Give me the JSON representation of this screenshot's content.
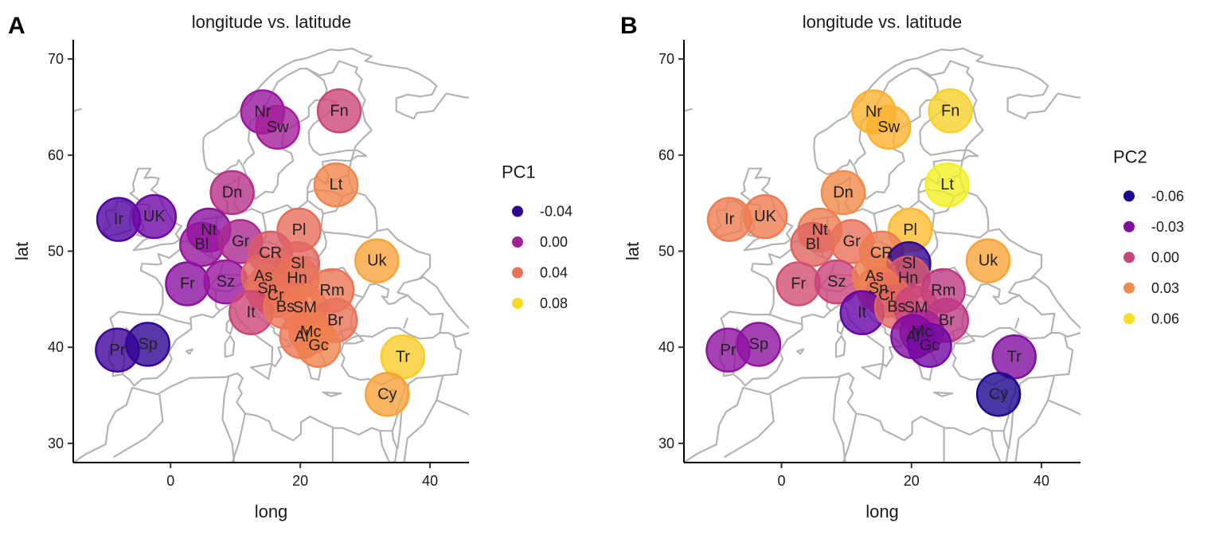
{
  "chart_data": [
    {
      "panel": "A",
      "type": "scatter",
      "title": "longitude vs. latitude",
      "xlabel": "long",
      "ylabel": "lat",
      "xlim": [
        -15,
        46
      ],
      "ylim": [
        28,
        72
      ],
      "xticks": [
        0,
        20,
        40
      ],
      "yticks": [
        30,
        40,
        50,
        60,
        70
      ],
      "color_var": "PC1",
      "legend": {
        "title": "PC1",
        "placement": "right",
        "entries": [
          {
            "label": "-0.04",
            "value": -0.04
          },
          {
            "label": "0.00",
            "value": 0.0
          },
          {
            "label": "0.04",
            "value": 0.04
          },
          {
            "label": "0.08",
            "value": 0.08
          }
        ],
        "range": [
          -0.05,
          0.09
        ]
      },
      "points": [
        {
          "label": "Nr",
          "long": 14.2,
          "lat": 64.5,
          "value": -0.005
        },
        {
          "label": "Sw",
          "long": 16.5,
          "lat": 62.9,
          "value": 0.0
        },
        {
          "label": "Fn",
          "long": 26.0,
          "lat": 64.6,
          "value": 0.02
        },
        {
          "label": "Dn",
          "long": 9.5,
          "lat": 56.1,
          "value": 0.01
        },
        {
          "label": "Lt",
          "long": 25.5,
          "lat": 56.9,
          "value": 0.048
        },
        {
          "label": "Ir",
          "long": -8.0,
          "lat": 53.3,
          "value": -0.03
        },
        {
          "label": "UK",
          "long": -2.5,
          "lat": 53.6,
          "value": -0.02
        },
        {
          "label": "Nt",
          "long": 5.9,
          "lat": 52.2,
          "value": -0.01
        },
        {
          "label": "Bl",
          "long": 4.8,
          "lat": 50.7,
          "value": -0.005
        },
        {
          "label": "Gr",
          "long": 10.8,
          "lat": 51.0,
          "value": 0.005
        },
        {
          "label": "Pl",
          "long": 19.8,
          "lat": 52.2,
          "value": 0.038
        },
        {
          "label": "CR",
          "long": 15.4,
          "lat": 49.8,
          "value": 0.03
        },
        {
          "label": "Sl",
          "long": 19.6,
          "lat": 48.7,
          "value": 0.035
        },
        {
          "label": "Uk",
          "long": 31.8,
          "lat": 49.0,
          "value": 0.06
        },
        {
          "label": "Fr",
          "long": 2.6,
          "lat": 46.6,
          "value": -0.01
        },
        {
          "label": "Sz",
          "long": 8.5,
          "lat": 46.8,
          "value": -0.005
        },
        {
          "label": "As",
          "long": 14.3,
          "lat": 47.4,
          "value": 0.035
        },
        {
          "label": "Hn",
          "long": 19.5,
          "lat": 47.2,
          "value": 0.04
        },
        {
          "label": "Rm",
          "long": 24.9,
          "lat": 45.9,
          "value": 0.042
        },
        {
          "label": "Sn",
          "long": 14.9,
          "lat": 46.1,
          "value": 0.038
        },
        {
          "label": "Cr",
          "long": 16.2,
          "lat": 45.4,
          "value": 0.04
        },
        {
          "label": "It",
          "long": 12.4,
          "lat": 43.6,
          "value": 0.02
        },
        {
          "label": "Bs",
          "long": 17.7,
          "lat": 44.2,
          "value": 0.042
        },
        {
          "label": "SM",
          "long": 20.7,
          "lat": 44.1,
          "value": 0.044
        },
        {
          "label": "Br",
          "long": 25.4,
          "lat": 42.8,
          "value": 0.04
        },
        {
          "label": "Mc",
          "long": 21.6,
          "lat": 41.6,
          "value": 0.045
        },
        {
          "label": "Al",
          "long": 20.2,
          "lat": 41.1,
          "value": 0.043
        },
        {
          "label": "Gc",
          "long": 22.8,
          "lat": 40.2,
          "value": 0.047
        },
        {
          "label": "Pr",
          "long": -8.2,
          "lat": 39.7,
          "value": -0.035
        },
        {
          "label": "Sp",
          "long": -3.5,
          "lat": 40.3,
          "value": -0.04
        },
        {
          "label": "Tr",
          "long": 35.8,
          "lat": 39.0,
          "value": 0.075
        },
        {
          "label": "Cy",
          "long": 33.4,
          "lat": 35.1,
          "value": 0.06
        }
      ]
    },
    {
      "panel": "B",
      "type": "scatter",
      "title": "longitude vs. latitude",
      "xlabel": "long",
      "ylabel": "lat",
      "xlim": [
        -15,
        46
      ],
      "ylim": [
        28,
        72
      ],
      "xticks": [
        0,
        20,
        40
      ],
      "yticks": [
        30,
        40,
        50,
        60,
        70
      ],
      "color_var": "PC2",
      "legend": {
        "title": "PC2",
        "placement": "right",
        "entries": [
          {
            "label": "-0.06",
            "value": -0.06
          },
          {
            "label": "-0.03",
            "value": -0.03
          },
          {
            "label": "0.00",
            "value": 0.0
          },
          {
            "label": "0.03",
            "value": 0.03
          },
          {
            "label": "0.06",
            "value": 0.06
          }
        ],
        "range": [
          -0.065,
          0.068
        ]
      },
      "points": [
        {
          "label": "Nr",
          "long": 14.2,
          "lat": 64.5,
          "value": 0.045
        },
        {
          "label": "Sw",
          "long": 16.5,
          "lat": 62.9,
          "value": 0.045
        },
        {
          "label": "Fn",
          "long": 26.0,
          "lat": 64.6,
          "value": 0.055
        },
        {
          "label": "Dn",
          "long": 9.5,
          "lat": 56.1,
          "value": 0.03
        },
        {
          "label": "Lt",
          "long": 25.5,
          "lat": 56.9,
          "value": 0.065
        },
        {
          "label": "Ir",
          "long": -8.0,
          "lat": 53.3,
          "value": 0.025
        },
        {
          "label": "UK",
          "long": -2.5,
          "lat": 53.6,
          "value": 0.025
        },
        {
          "label": "Nt",
          "long": 5.9,
          "lat": 52.2,
          "value": 0.025
        },
        {
          "label": "Bl",
          "long": 4.8,
          "lat": 50.7,
          "value": 0.015
        },
        {
          "label": "Gr",
          "long": 10.8,
          "lat": 51.0,
          "value": 0.02
        },
        {
          "label": "Pl",
          "long": 19.8,
          "lat": 52.2,
          "value": 0.048
        },
        {
          "label": "CR",
          "long": 15.4,
          "lat": 49.8,
          "value": 0.025
        },
        {
          "label": "Sl",
          "long": 19.6,
          "lat": 48.7,
          "value": -0.055
        },
        {
          "label": "Uk",
          "long": 31.8,
          "lat": 49.0,
          "value": 0.04
        },
        {
          "label": "Fr",
          "long": 2.6,
          "lat": 46.6,
          "value": 0.005
        },
        {
          "label": "Sz",
          "long": 8.5,
          "lat": 46.8,
          "value": 0.0
        },
        {
          "label": "As",
          "long": 14.3,
          "lat": 47.4,
          "value": 0.025
        },
        {
          "label": "Hn",
          "long": 19.5,
          "lat": 47.2,
          "value": 0.01
        },
        {
          "label": "Rm",
          "long": 24.9,
          "lat": 45.9,
          "value": -0.005
        },
        {
          "label": "Sn",
          "long": 14.9,
          "lat": 46.1,
          "value": 0.025
        },
        {
          "label": "Cr",
          "long": 16.2,
          "lat": 45.4,
          "value": 0.02
        },
        {
          "label": "It",
          "long": 12.4,
          "lat": 43.6,
          "value": -0.04
        },
        {
          "label": "Bs",
          "long": 17.7,
          "lat": 44.2,
          "value": 0.015
        },
        {
          "label": "SM",
          "long": 20.7,
          "lat": 44.1,
          "value": 0.0
        },
        {
          "label": "Br",
          "long": 25.4,
          "lat": 42.8,
          "value": -0.005
        },
        {
          "label": "Mc",
          "long": 21.6,
          "lat": 41.6,
          "value": -0.015
        },
        {
          "label": "Al",
          "long": 20.2,
          "lat": 41.1,
          "value": -0.03
        },
        {
          "label": "Gc",
          "long": 22.8,
          "lat": 40.2,
          "value": -0.035
        },
        {
          "label": "Pr",
          "long": -8.2,
          "lat": 39.7,
          "value": -0.025
        },
        {
          "label": "Sp",
          "long": -3.5,
          "lat": 40.3,
          "value": -0.025
        },
        {
          "label": "Tr",
          "long": 35.8,
          "lat": 39.0,
          "value": -0.03
        },
        {
          "label": "Cy",
          "long": 33.4,
          "lat": 35.1,
          "value": -0.06
        }
      ]
    }
  ],
  "palette": {
    "name": "plasma",
    "stops": [
      "#0d0887",
      "#5c01a6",
      "#9c179e",
      "#cc4778",
      "#ed7953",
      "#fdb42f",
      "#f0f921"
    ]
  },
  "point_alpha": 0.8,
  "map_color": "#b3b3b3"
}
